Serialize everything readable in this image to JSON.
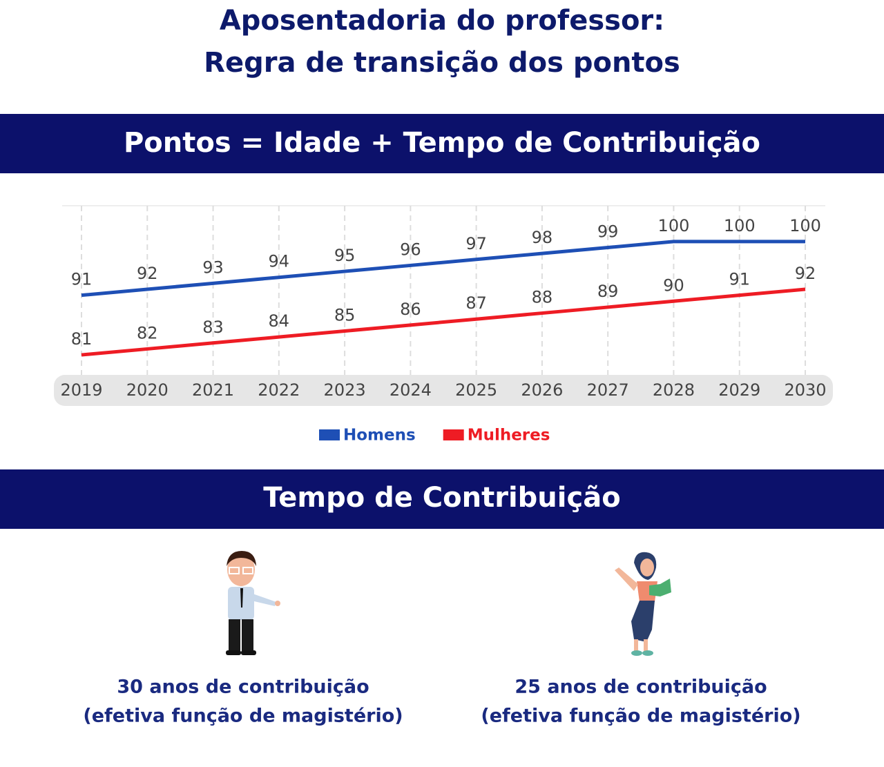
{
  "header": {
    "title": [
      "Aposentadoria do professor:",
      "Regra de transição dos pontos"
    ]
  },
  "formula_banner": "Pontos = Idade + Tempo de Contribuição",
  "chart_data": {
    "type": "line",
    "categories": [
      "2019",
      "2020",
      "2021",
      "2022",
      "2023",
      "2024",
      "2025",
      "2026",
      "2027",
      "2028",
      "2029",
      "2030"
    ],
    "series": [
      {
        "name": "Homens",
        "color": "#1e4fb5",
        "values": [
          91,
          92,
          93,
          94,
          95,
          96,
          97,
          98,
          99,
          100,
          100,
          100
        ]
      },
      {
        "name": "Mulheres",
        "color": "#ee1c24",
        "values": [
          81,
          82,
          83,
          84,
          85,
          86,
          87,
          88,
          89,
          90,
          91,
          92
        ]
      }
    ],
    "ylim": [
      78,
      106
    ],
    "grid": true,
    "legend": "bottom"
  },
  "contribution_banner": "Tempo de Contribuição",
  "contribution": [
    {
      "line1": "30 anos de contribuição",
      "line2": "(efetiva função de magistério)"
    },
    {
      "line1": "25 anos de contribuição",
      "line2": "(efetiva função de magistério)"
    }
  ]
}
